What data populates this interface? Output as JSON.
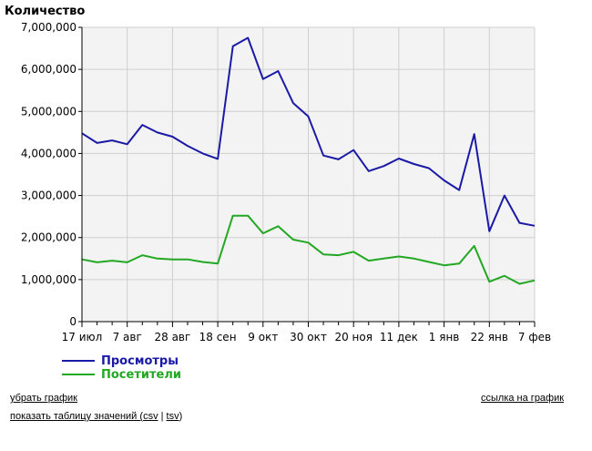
{
  "chart_data": {
    "type": "line",
    "title": "Количество",
    "ylim": [
      0,
      7000000
    ],
    "y_ticks": [
      0,
      1000000,
      2000000,
      3000000,
      4000000,
      5000000,
      6000000,
      7000000
    ],
    "y_tick_labels": [
      "0",
      "1,000,000",
      "2,000,000",
      "3,000,000",
      "4,000,000",
      "5,000,000",
      "6,000,000",
      "7,000,000"
    ],
    "x_count": 31,
    "x_ticks": [
      0,
      3,
      6,
      9,
      12,
      15,
      18,
      21,
      24,
      27,
      30
    ],
    "x_tick_labels": [
      "17 июл",
      "7 авг",
      "28 авг",
      "18 сен",
      "9 окт",
      "30 окт",
      "20 ноя",
      "11 дек",
      "1 янв",
      "22 янв",
      "7 фев"
    ],
    "grid": true,
    "legend_position": "bottom-left",
    "series": [
      {
        "name": "Просмотры",
        "color": "#1a1aa6",
        "values": [
          4480000,
          4250000,
          4310000,
          4220000,
          4680000,
          4500000,
          4400000,
          4180000,
          4000000,
          3870000,
          6550000,
          6750000,
          5770000,
          5960000,
          5200000,
          4880000,
          3950000,
          3860000,
          4080000,
          3580000,
          3700000,
          3880000,
          3750000,
          3650000,
          3360000,
          3130000,
          4460000,
          2150000,
          3000000,
          2350000,
          2280000
        ]
      },
      {
        "name": "Посетители",
        "color": "#22a822",
        "values": [
          1480000,
          1410000,
          1450000,
          1410000,
          1580000,
          1500000,
          1480000,
          1480000,
          1420000,
          1380000,
          2520000,
          2520000,
          2100000,
          2270000,
          1950000,
          1880000,
          1600000,
          1580000,
          1660000,
          1450000,
          1500000,
          1550000,
          1500000,
          1420000,
          1340000,
          1380000,
          1800000,
          950000,
          1090000,
          900000,
          980000
        ]
      }
    ]
  },
  "links": {
    "remove_chart": "убрать график",
    "chart_link": "ссылка на график",
    "show_table_prefix": "показать таблицу значений (",
    "csv": "csv",
    "separator": " | ",
    "tsv": "tsv",
    "show_table_suffix": ")"
  }
}
